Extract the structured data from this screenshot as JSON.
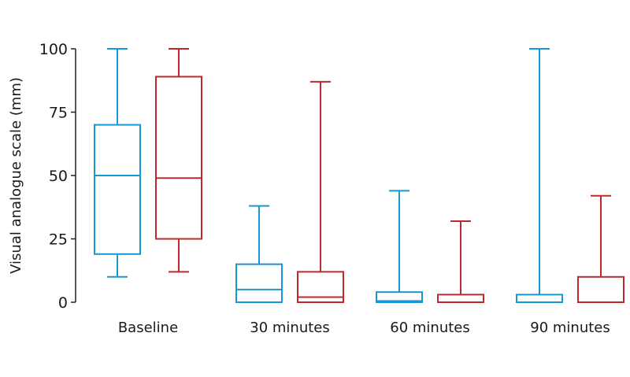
{
  "chart_data": {
    "type": "box",
    "ylabel": "Visual analogue scale (mm)",
    "ylim": [
      0,
      100
    ],
    "yticks": [
      0,
      25,
      50,
      75,
      100
    ],
    "categories": [
      "Baseline",
      "30 minutes",
      "60 minutes",
      "90 minutes"
    ],
    "grid": false,
    "legend": "none",
    "series": [
      {
        "color": "#1a96d2",
        "boxes": [
          {
            "min": 10,
            "q1": 19,
            "median": 50,
            "q3": 70,
            "max": 100
          },
          {
            "min": 0,
            "q1": 0,
            "median": 5,
            "q3": 15,
            "max": 38
          },
          {
            "min": 0,
            "q1": 0,
            "median": 0.5,
            "q3": 4,
            "max": 44
          },
          {
            "min": 0,
            "q1": 0,
            "median": 0,
            "q3": 3,
            "max": 100
          }
        ]
      },
      {
        "color": "#c0282d",
        "boxes": [
          {
            "min": 12,
            "q1": 25,
            "median": 49,
            "q3": 89,
            "max": 100
          },
          {
            "min": 0,
            "q1": 0,
            "median": 2,
            "q3": 12,
            "max": 87
          },
          {
            "min": 0,
            "q1": 0,
            "median": 0,
            "q3": 3,
            "max": 32
          },
          {
            "min": 0,
            "q1": 0,
            "median": 0,
            "q3": 10,
            "max": 42
          }
        ]
      }
    ]
  }
}
